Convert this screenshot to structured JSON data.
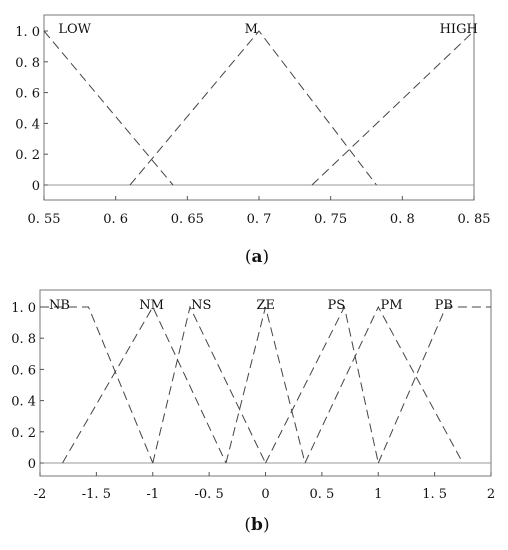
{
  "chart_data": [
    {
      "type": "line",
      "caption_letter": "a",
      "xlim": [
        0.55,
        0.85
      ],
      "ylim": [
        -0.1,
        1.05
      ],
      "x_ticks": [
        0.55,
        0.6,
        0.65,
        0.7,
        0.75,
        0.8,
        0.85
      ],
      "x_tick_labels": [
        "0. 55",
        "0. 6",
        "0. 65",
        "0. 7",
        "0. 75",
        "0. 8",
        "0. 85"
      ],
      "y_ticks": [
        0,
        0.2,
        0.4,
        0.6,
        0.8,
        1.0
      ],
      "y_tick_labels": [
        "0",
        "0. 2",
        "0. 4",
        "0. 6",
        "0. 8",
        "1. 0"
      ],
      "grid": false,
      "series": [
        {
          "name": "LOW",
          "points": [
            [
              0.55,
              1.0
            ],
            [
              0.64,
              0.0
            ]
          ],
          "label_at": [
            0.56,
            1.02
          ]
        },
        {
          "name": "M",
          "points": [
            [
              0.61,
              0.0
            ],
            [
              0.7,
              1.0
            ],
            [
              0.782,
              0.0
            ]
          ],
          "label_at": [
            0.69,
            1.02
          ]
        },
        {
          "name": "HIGH",
          "points": [
            [
              0.737,
              0.0
            ],
            [
              0.85,
              1.0
            ]
          ],
          "label_at": [
            0.826,
            1.02
          ]
        }
      ]
    },
    {
      "type": "line",
      "caption_letter": "b",
      "xlim": [
        -2,
        2
      ],
      "ylim": [
        -0.1,
        1.05
      ],
      "x_ticks": [
        -2,
        -1.5,
        -1,
        -0.5,
        0,
        0.5,
        1,
        1.5,
        2
      ],
      "x_tick_labels": [
        "-2",
        "-1. 5",
        "-1",
        "-0. 5",
        "0",
        "0. 5",
        "1",
        "1. 5",
        "2"
      ],
      "y_ticks": [
        0,
        0.2,
        0.4,
        0.6,
        0.8,
        1.0
      ],
      "y_tick_labels": [
        "0",
        "0. 2",
        "0. 4",
        "0. 6",
        "0. 8",
        "1. 0"
      ],
      "grid": false,
      "series": [
        {
          "name": "NB",
          "points": [
            [
              -2.0,
              1.0
            ],
            [
              -1.57,
              1.0
            ],
            [
              -1.0,
              0.0
            ]
          ],
          "label_at": [
            -1.92,
            1.02
          ]
        },
        {
          "name": "NM",
          "points": [
            [
              -1.8,
              0.0
            ],
            [
              -1.0,
              1.0
            ],
            [
              -0.35,
              0.0
            ]
          ],
          "label_at": [
            -1.12,
            1.02
          ]
        },
        {
          "name": "NS",
          "points": [
            [
              -1.0,
              0.0
            ],
            [
              -0.67,
              1.0
            ],
            [
              0.0,
              0.0
            ]
          ],
          "label_at": [
            -0.66,
            1.02
          ]
        },
        {
          "name": "ZE",
          "points": [
            [
              -0.35,
              0.0
            ],
            [
              0.0,
              1.0
            ],
            [
              0.35,
              0.0
            ]
          ],
          "label_at": [
            -0.08,
            1.02
          ]
        },
        {
          "name": "PS",
          "points": [
            [
              0.0,
              0.0
            ],
            [
              0.7,
              1.0
            ],
            [
              1.0,
              0.0
            ]
          ],
          "label_at": [
            0.55,
            1.02
          ]
        },
        {
          "name": "PM",
          "points": [
            [
              0.35,
              0.0
            ],
            [
              1.0,
              1.0
            ],
            [
              1.75,
              0.0
            ]
          ],
          "label_at": [
            1.02,
            1.02
          ]
        },
        {
          "name": "PB",
          "points": [
            [
              1.0,
              0.0
            ],
            [
              1.6,
              1.0
            ],
            [
              2.0,
              1.0
            ]
          ],
          "label_at": [
            1.5,
            1.02
          ]
        }
      ]
    }
  ]
}
